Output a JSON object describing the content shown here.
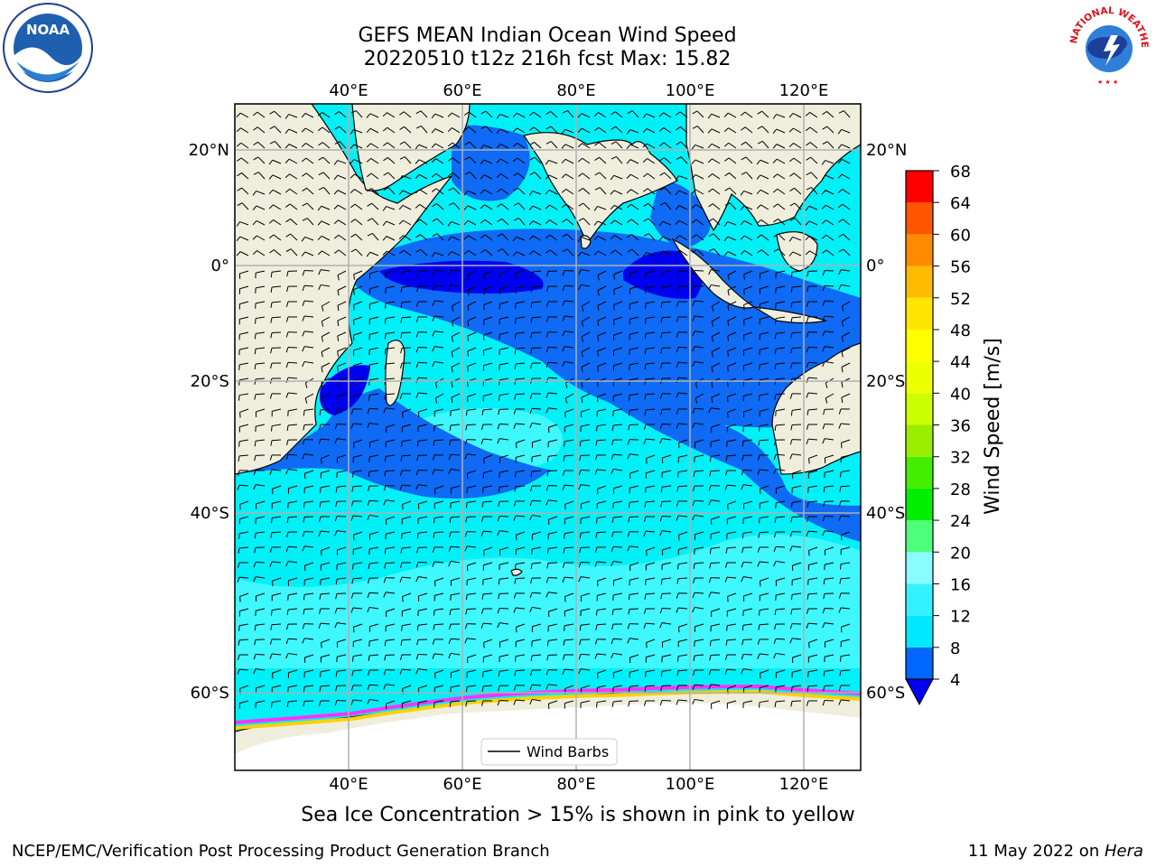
{
  "title": {
    "line1": "GEFS MEAN Indian Ocean Wind Speed",
    "line2": "20220510 t12z 216h fcst   Max: 15.82"
  },
  "map": {
    "lon_labels": [
      "40°E",
      "60°E",
      "80°E",
      "100°E",
      "120°E"
    ],
    "lon_values": [
      40,
      60,
      80,
      100,
      120
    ],
    "lat_labels": [
      "20°N",
      "0°",
      "20°S",
      "40°S",
      "60°S"
    ],
    "lat_values": [
      20,
      0,
      -20,
      -40,
      -60
    ],
    "legend_label": "Wind Barbs",
    "colors": {
      "land": "#efeedd",
      "wind_4_8": "#0f6af6",
      "wind_below_4": "#0000f0",
      "wind_8_12": "#00f0f8",
      "wind_12_16": "#3ff8ff",
      "ice_pink": "#ff32ff",
      "ice_yellow": "#ffd100",
      "antarctic": "#ffffff"
    }
  },
  "colorbar": {
    "label": "Wind Speed [m/s]",
    "ticks": [
      "68",
      "64",
      "60",
      "56",
      "52",
      "48",
      "44",
      "40",
      "36",
      "32",
      "28",
      "24",
      "20",
      "16",
      "12",
      "8",
      "4"
    ],
    "colors": [
      "#0066ff",
      "#00e8ff",
      "#33f2ff",
      "#88fcff",
      "#4dff7a",
      "#00ee00",
      "#44ee00",
      "#99ee00",
      "#ccff00",
      "#eeff00",
      "#ffff00",
      "#ffe600",
      "#ffbb00",
      "#ff8a00",
      "#ff5500",
      "#ff2200",
      "#ff0000"
    ]
  },
  "logos": {
    "noaa_text": "NOAA",
    "nws_text": "NATIONAL WEATHER SERVICE"
  },
  "caption": "Sea Ice Concentration > 15% is shown in pink to yellow",
  "footer": {
    "left": "NCEP/EMC/Verification Post Processing Product Generation Branch",
    "right_date": "11 May 2022 on ",
    "right_host": "Hera"
  }
}
